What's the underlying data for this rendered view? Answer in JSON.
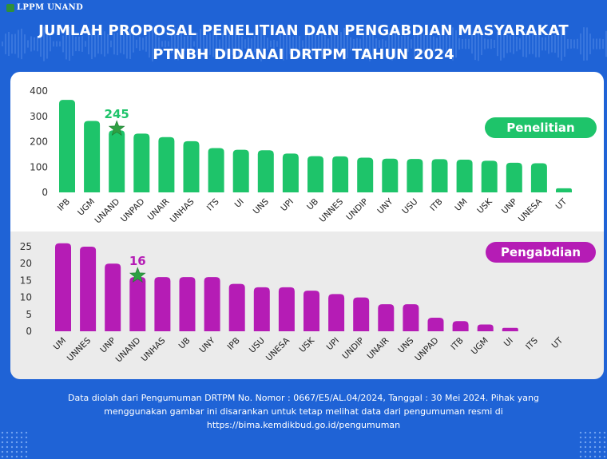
{
  "header": {
    "logo_text": "LPPM UNAND",
    "title_line1": "JUMLAH PROPOSAL PENELITIAN DAN PENGABDIAN MASYARAKAT",
    "title_line2": "PTNBH DIDANAI DRTPM TAHUN 2024"
  },
  "footer": {
    "line1": "Data diolah dari Pengumuman DRTPM No. Nomor : 0667/E5/AL.04/2024, Tanggal : 30 Mei 2024. Pihak yang",
    "line2": "menggunakan gambar ini disarankan untuk tetap melihat data dari pengumuman resmi di",
    "line3": "https://bima.kemdikbud.go.id/pengumuman"
  },
  "colors": {
    "background": "#1f63d6",
    "penelitian": "#1ec46a",
    "pengabdian": "#b51cb5",
    "star": "#2ea043"
  },
  "chart_data": [
    {
      "type": "bar",
      "title": "",
      "badge_label": "Penelitian",
      "categories": [
        "IPB",
        "UGM",
        "UNAND",
        "UNPAD",
        "UNAIR",
        "UNHAS",
        "ITS",
        "UI",
        "UNS",
        "UPI",
        "UB",
        "UNNES",
        "UNDIP",
        "UNY",
        "USU",
        "ITB",
        "UM",
        "USK",
        "UNP",
        "UNESA",
        "UT"
      ],
      "values": [
        365,
        282,
        245,
        232,
        218,
        202,
        175,
        168,
        166,
        153,
        143,
        142,
        137,
        133,
        132,
        131,
        129,
        125,
        117,
        115,
        16
      ],
      "ylim": [
        0,
        400
      ],
      "yticks": [
        0,
        100,
        200,
        300,
        400
      ],
      "highlight": {
        "category": "UNAND",
        "label": "245"
      },
      "grid": false,
      "legend_position": "top-right"
    },
    {
      "type": "bar",
      "title": "",
      "badge_label": "Pengabdian",
      "categories": [
        "UM",
        "UNNES",
        "UNP",
        "UNAND",
        "UNHAS",
        "UB",
        "UNY",
        "IPB",
        "USU",
        "UNESA",
        "USK",
        "UPI",
        "UNDIP",
        "UNAIR",
        "UNS",
        "UNPAD",
        "ITB",
        "UGM",
        "UI",
        "ITS",
        "UT"
      ],
      "values": [
        26,
        25,
        20,
        16,
        16,
        16,
        16,
        14,
        13,
        13,
        12,
        11,
        10,
        8,
        8,
        4,
        3,
        2,
        1,
        0,
        0
      ],
      "ylim": [
        0,
        25
      ],
      "yticks": [
        0,
        5,
        10,
        15,
        20,
        25
      ],
      "highlight": {
        "category": "UNAND",
        "label": "16"
      },
      "grid": false,
      "legend_position": "top-right"
    }
  ]
}
